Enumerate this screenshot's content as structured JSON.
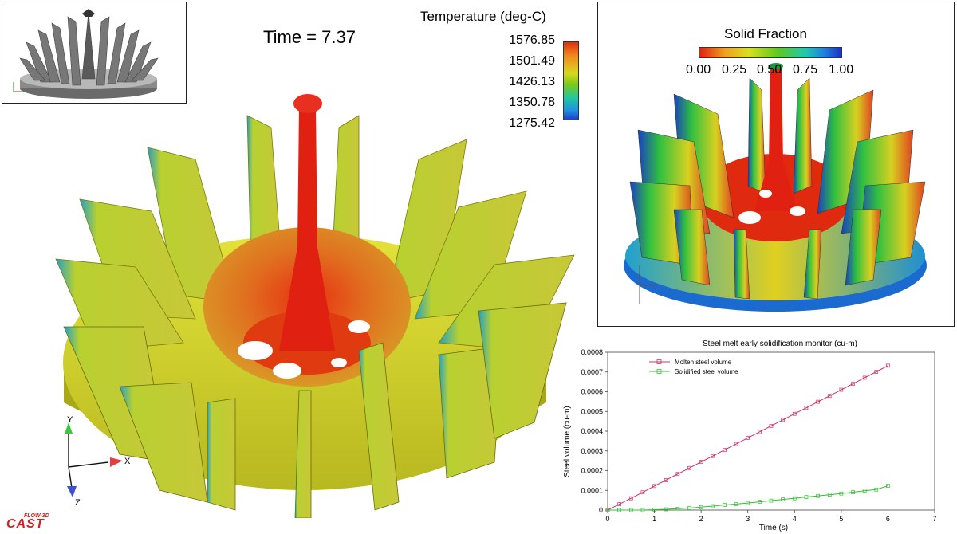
{
  "simulation": {
    "time_label": "Time = 7.37"
  },
  "temperature_legend": {
    "title": "Temperature (deg-C)",
    "ticks": [
      "1576.85",
      "1501.49",
      "1426.13",
      "1350.78",
      "1275.42"
    ]
  },
  "solid_fraction_legend": {
    "title": "Solid Fraction",
    "ticks": [
      "0.00",
      "0.25",
      "0.50",
      "0.75",
      "1.00"
    ]
  },
  "axes_triad": {
    "main": {
      "x": "X",
      "y": "Y",
      "z": "Z"
    }
  },
  "logo": {
    "top": "FLOW-3D",
    "bottom": "CAST"
  },
  "colors": {
    "molten": "#d0306a",
    "solidified": "#30c030",
    "red_metal": "#e02010",
    "yellow_metal": "#c8c820"
  },
  "chart_data": {
    "type": "line",
    "title": "Steel melt early solidification monitor (cu-m)",
    "xlabel": "Time (s)",
    "ylabel": "Steel volume (cu-m)",
    "xlim": [
      0,
      7
    ],
    "ylim": [
      0,
      0.0008
    ],
    "xticks": [
      "0",
      "1",
      "2",
      "3",
      "4",
      "5",
      "6",
      "7"
    ],
    "yticks": [
      "0",
      "0.0001",
      "0.0002",
      "0.0003",
      "0.0004",
      "0.0005",
      "0.0006",
      "0.0007",
      "0.0008"
    ],
    "legend_position": "top-left",
    "grid": false,
    "series": [
      {
        "name": "Molten steel volume",
        "color": "#d0306a",
        "x": [
          0,
          0.25,
          0.5,
          0.75,
          1,
          1.25,
          1.5,
          1.75,
          2,
          2.25,
          2.5,
          2.75,
          3,
          3.25,
          3.5,
          3.75,
          4,
          4.25,
          4.5,
          4.75,
          5,
          5.25,
          5.5,
          5.75,
          6
        ],
        "y": [
          0,
          3e-05,
          6e-05,
          9e-05,
          0.000122,
          0.000152,
          0.000183,
          0.000213,
          0.000244,
          0.000274,
          0.000305,
          0.000335,
          0.000366,
          0.000396,
          0.000427,
          0.000457,
          0.000488,
          0.000518,
          0.000549,
          0.000579,
          0.00061,
          0.00064,
          0.000671,
          0.000701,
          0.000732
        ]
      },
      {
        "name": "Solidified steel volume",
        "color": "#30c030",
        "x": [
          0,
          0.25,
          0.5,
          0.75,
          1,
          1.25,
          1.5,
          1.75,
          2,
          2.25,
          2.5,
          2.75,
          3,
          3.25,
          3.5,
          3.75,
          4,
          4.25,
          4.5,
          4.75,
          5,
          5.25,
          5.5,
          5.75,
          6
        ],
        "y": [
          0,
          0,
          0,
          0,
          2e-06,
          4e-06,
          7e-06,
          1e-05,
          1.5e-05,
          2e-05,
          2.6e-05,
          3.1e-05,
          3.6e-05,
          4.2e-05,
          4.8e-05,
          5.4e-05,
          6e-05,
          6.6e-05,
          7.2e-05,
          7.8e-05,
          8.4e-05,
          9.1e-05,
          9.8e-05,
          0.000104,
          0.000123
        ]
      }
    ]
  }
}
